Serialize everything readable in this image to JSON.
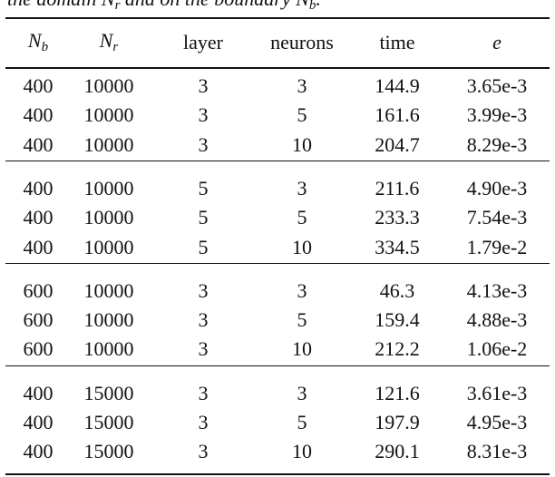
{
  "caption": [
    "the domain ",
    {
      "text": "N",
      "sub": "r"
    },
    " and on the boundary ",
    {
      "text": "N",
      "sub": "b"
    },
    "."
  ],
  "table": {
    "header": [
      {
        "text": "N",
        "sub": "b"
      },
      {
        "text": "N",
        "sub": "r"
      },
      "layer",
      "neurons",
      "time",
      {
        "text": "e"
      }
    ],
    "groups": [
      [
        [
          "400",
          "10000",
          "3",
          "3",
          "144.9",
          "3.65e-3"
        ],
        [
          "400",
          "10000",
          "3",
          "5",
          "161.6",
          "3.99e-3"
        ],
        [
          "400",
          "10000",
          "3",
          "10",
          "204.7",
          "8.29e-3"
        ]
      ],
      [
        [
          "400",
          "10000",
          "5",
          "3",
          "211.6",
          "4.90e-3"
        ],
        [
          "400",
          "10000",
          "5",
          "5",
          "233.3",
          "7.54e-3"
        ],
        [
          "400",
          "10000",
          "5",
          "10",
          "334.5",
          "1.79e-2"
        ]
      ],
      [
        [
          "600",
          "10000",
          "3",
          "3",
          "46.3",
          "4.13e-3"
        ],
        [
          "600",
          "10000",
          "3",
          "5",
          "159.4",
          "4.88e-3"
        ],
        [
          "600",
          "10000",
          "3",
          "10",
          "212.2",
          "1.06e-2"
        ]
      ],
      [
        [
          "400",
          "15000",
          "3",
          "3",
          "121.6",
          "3.61e-3"
        ],
        [
          "400",
          "15000",
          "3",
          "5",
          "197.9",
          "4.95e-3"
        ],
        [
          "400",
          "15000",
          "3",
          "10",
          "290.1",
          "8.31e-3"
        ]
      ]
    ]
  }
}
